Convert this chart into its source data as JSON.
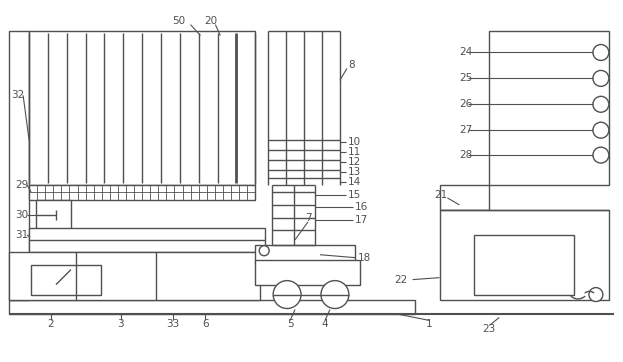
{
  "bg_color": "#ffffff",
  "line_color": "#505050",
  "lw": 1.0,
  "fig_w": 6.23,
  "fig_h": 3.62,
  "dpi": 100
}
